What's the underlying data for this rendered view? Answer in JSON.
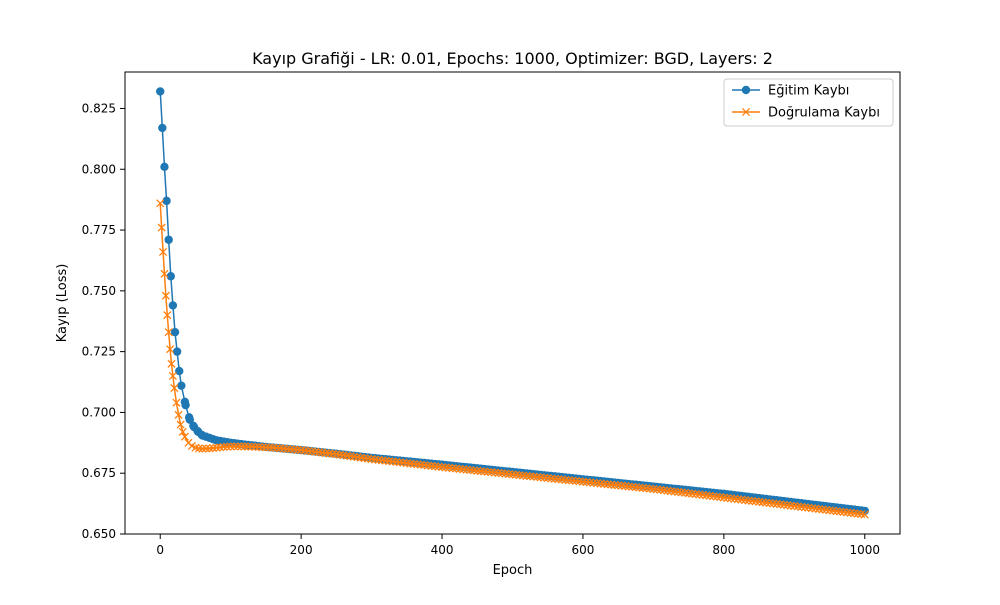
{
  "chart_data": {
    "type": "line",
    "title": "Kayıp Grafiği - LR: 0.01, Epochs: 1000, Optimizer: BGD, Layers: 2",
    "xlabel": "Epoch",
    "ylabel": "Kayıp (Loss)",
    "xlim": [
      -50,
      1050
    ],
    "ylim": [
      0.65,
      0.84
    ],
    "xticks": [
      0,
      200,
      400,
      600,
      800,
      1000
    ],
    "xtick_labels": [
      "0",
      "200",
      "400",
      "600",
      "800",
      "1000"
    ],
    "yticks": [
      0.65,
      0.675,
      0.7,
      0.725,
      0.75,
      0.775,
      0.8,
      0.825
    ],
    "ytick_labels": [
      "0.650",
      "0.675",
      "0.700",
      "0.725",
      "0.750",
      "0.775",
      "0.800",
      "0.825"
    ],
    "grid": false,
    "legend_position": "top-right",
    "series": [
      {
        "name": "Eğitim Kaybı",
        "color": "#1f77b4",
        "marker": "circle",
        "x": [
          0,
          3,
          6,
          9,
          12,
          15,
          18,
          21,
          24,
          27,
          30,
          36,
          42,
          48,
          54,
          60,
          70,
          80,
          90,
          100,
          120,
          150,
          200,
          250,
          300,
          400,
          500,
          600,
          700,
          800,
          900,
          1000
        ],
        "y": [
          0.832,
          0.817,
          0.801,
          0.787,
          0.771,
          0.756,
          0.744,
          0.733,
          0.725,
          0.717,
          0.711,
          0.703,
          0.697,
          0.694,
          0.692,
          0.6905,
          0.6895,
          0.6885,
          0.688,
          0.6875,
          0.6868,
          0.6858,
          0.6845,
          0.683,
          0.6813,
          0.6785,
          0.6755,
          0.6725,
          0.6695,
          0.6665,
          0.663,
          0.6595
        ]
      },
      {
        "name": "Doğrulama Kaybı",
        "color": "#ff7f0e",
        "marker": "x",
        "x": [
          0,
          2,
          4,
          6,
          8,
          10,
          12,
          14,
          16,
          18,
          20,
          23,
          26,
          29,
          32,
          35,
          40,
          45,
          50,
          55,
          60,
          70,
          80,
          90,
          100,
          120,
          140,
          160,
          200,
          250,
          300,
          400,
          500,
          600,
          700,
          800,
          900,
          1000
        ],
        "y": [
          0.786,
          0.776,
          0.766,
          0.757,
          0.748,
          0.74,
          0.733,
          0.726,
          0.72,
          0.715,
          0.71,
          0.704,
          0.699,
          0.695,
          0.692,
          0.69,
          0.6875,
          0.6862,
          0.6855,
          0.6852,
          0.6851,
          0.6852,
          0.6855,
          0.6858,
          0.686,
          0.686,
          0.6858,
          0.6855,
          0.6845,
          0.6828,
          0.6808,
          0.6775,
          0.6745,
          0.6715,
          0.6685,
          0.665,
          0.6615,
          0.658
        ]
      }
    ]
  }
}
